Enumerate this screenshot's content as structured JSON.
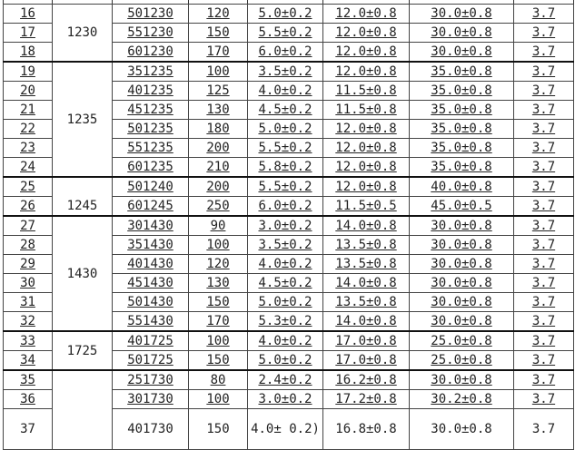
{
  "table": {
    "rows": [
      {
        "no": "16",
        "model": "501230",
        "capacity": "120",
        "thickness": "5.0±0.2",
        "width": "12.0±0.8",
        "length": "30.0±0.8",
        "voltage": "3.7"
      },
      {
        "no": "17",
        "model": "551230",
        "capacity": "150",
        "thickness": "5.5±0.2",
        "width": "12.0±0.8",
        "length": "30.0±0.8",
        "voltage": "3.7"
      },
      {
        "no": "18",
        "model": "601230",
        "capacity": "170",
        "thickness": "6.0±0.2",
        "width": "12.0±0.8",
        "length": "30.0±0.8",
        "voltage": "3.7"
      },
      {
        "no": "19",
        "model": "351235",
        "capacity": "100",
        "thickness": "3.5±0.2",
        "width": "12.0±0.8",
        "length": "35.0±0.8",
        "voltage": "3.7"
      },
      {
        "no": "20",
        "model": "401235",
        "capacity": "125",
        "thickness": "4.0±0.2",
        "width": "11.5±0.8",
        "length": "35.0±0.8",
        "voltage": "3.7"
      },
      {
        "no": "21",
        "model": "451235",
        "capacity": "130",
        "thickness": "4.5±0.2",
        "width": "11.5±0.8",
        "length": "35.0±0.8",
        "voltage": "3.7"
      },
      {
        "no": "22",
        "model": "501235",
        "capacity": "180",
        "thickness": "5.0±0.2",
        "width": "12.0±0.8",
        "length": "35.0±0.8",
        "voltage": "3.7"
      },
      {
        "no": "23",
        "model": "551235",
        "capacity": "200",
        "thickness": "5.5±0.2",
        "width": "12.0±0.8",
        "length": "35.0±0.8",
        "voltage": "3.7"
      },
      {
        "no": "24",
        "model": "601235",
        "capacity": "210",
        "thickness": "5.8±0.2",
        "width": "12.0±0.8",
        "length": "35.0±0.8",
        "voltage": "3.7"
      },
      {
        "no": "25",
        "model": "501240",
        "capacity": "200",
        "thickness": "5.5±0.2",
        "width": "12.0±0.8",
        "length": "40.0±0.8",
        "voltage": "3.7"
      },
      {
        "no": "26",
        "model": "601245",
        "capacity": "250",
        "thickness": "6.0±0.2",
        "width": "11.5±0.5",
        "length": "45.0±0.5",
        "voltage": "3.7"
      },
      {
        "no": "27",
        "model": "301430",
        "capacity": "90",
        "thickness": "3.0±0.2",
        "width": "14.0±0.8",
        "length": "30.0±0.8",
        "voltage": "3.7"
      },
      {
        "no": "28",
        "model": "351430",
        "capacity": "100",
        "thickness": "3.5±0.2",
        "width": "13.5±0.8",
        "length": "30.0±0.8",
        "voltage": "3.7"
      },
      {
        "no": "29",
        "model": "401430",
        "capacity": "120",
        "thickness": "4.0±0.2",
        "width": "13.5±0.8",
        "length": "30.0±0.8",
        "voltage": "3.7"
      },
      {
        "no": "30",
        "model": "451430",
        "capacity": "130",
        "thickness": "4.5±0.2",
        "width": "14.0±0.8",
        "length": "30.0±0.8",
        "voltage": "3.7"
      },
      {
        "no": "31",
        "model": "501430",
        "capacity": "150",
        "thickness": "5.0±0.2",
        "width": "13.5±0.8",
        "length": "30.0±0.8",
        "voltage": "3.7"
      },
      {
        "no": "32",
        "model": "551430",
        "capacity": "170",
        "thickness": "5.3±0.2",
        "width": "14.0±0.8",
        "length": "30.0±0.8",
        "voltage": "3.7"
      },
      {
        "no": "33",
        "model": "401725",
        "capacity": "100",
        "thickness": "4.0±0.2",
        "width": "17.0±0.8",
        "length": "25.0±0.8",
        "voltage": "3.7"
      },
      {
        "no": "34",
        "model": "501725",
        "capacity": "150",
        "thickness": "5.0±0.2",
        "width": "17.0±0.8",
        "length": "25.0±0.8",
        "voltage": "3.7"
      },
      {
        "no": "35",
        "model": "251730",
        "capacity": "80",
        "thickness": "2.4±0.2",
        "width": "16.2±0.8",
        "length": "30.0±0.8",
        "voltage": "3.7"
      },
      {
        "no": "36",
        "model": "301730",
        "capacity": "100",
        "thickness": "3.0±0.2",
        "width": "17.2±0.8",
        "length": "30.2±0.8",
        "voltage": "3.7"
      },
      {
        "no": "37",
        "model": "401730",
        "capacity": "150",
        "thickness": "4.0± 0.2)",
        "width": "16.8±0.8",
        "length": "30.0±0.8",
        "voltage": "3.7"
      }
    ],
    "groups": [
      {
        "label": "1230",
        "start": 0,
        "span": 3
      },
      {
        "label": "1235",
        "start": 3,
        "span": 6
      },
      {
        "label": "1245",
        "start": 9,
        "span": 2,
        "bottom": true
      },
      {
        "label": "1430",
        "start": 11,
        "span": 6
      },
      {
        "label": "1725",
        "start": 17,
        "span": 2
      },
      {
        "label": "",
        "start": 19,
        "span": 3
      }
    ]
  }
}
